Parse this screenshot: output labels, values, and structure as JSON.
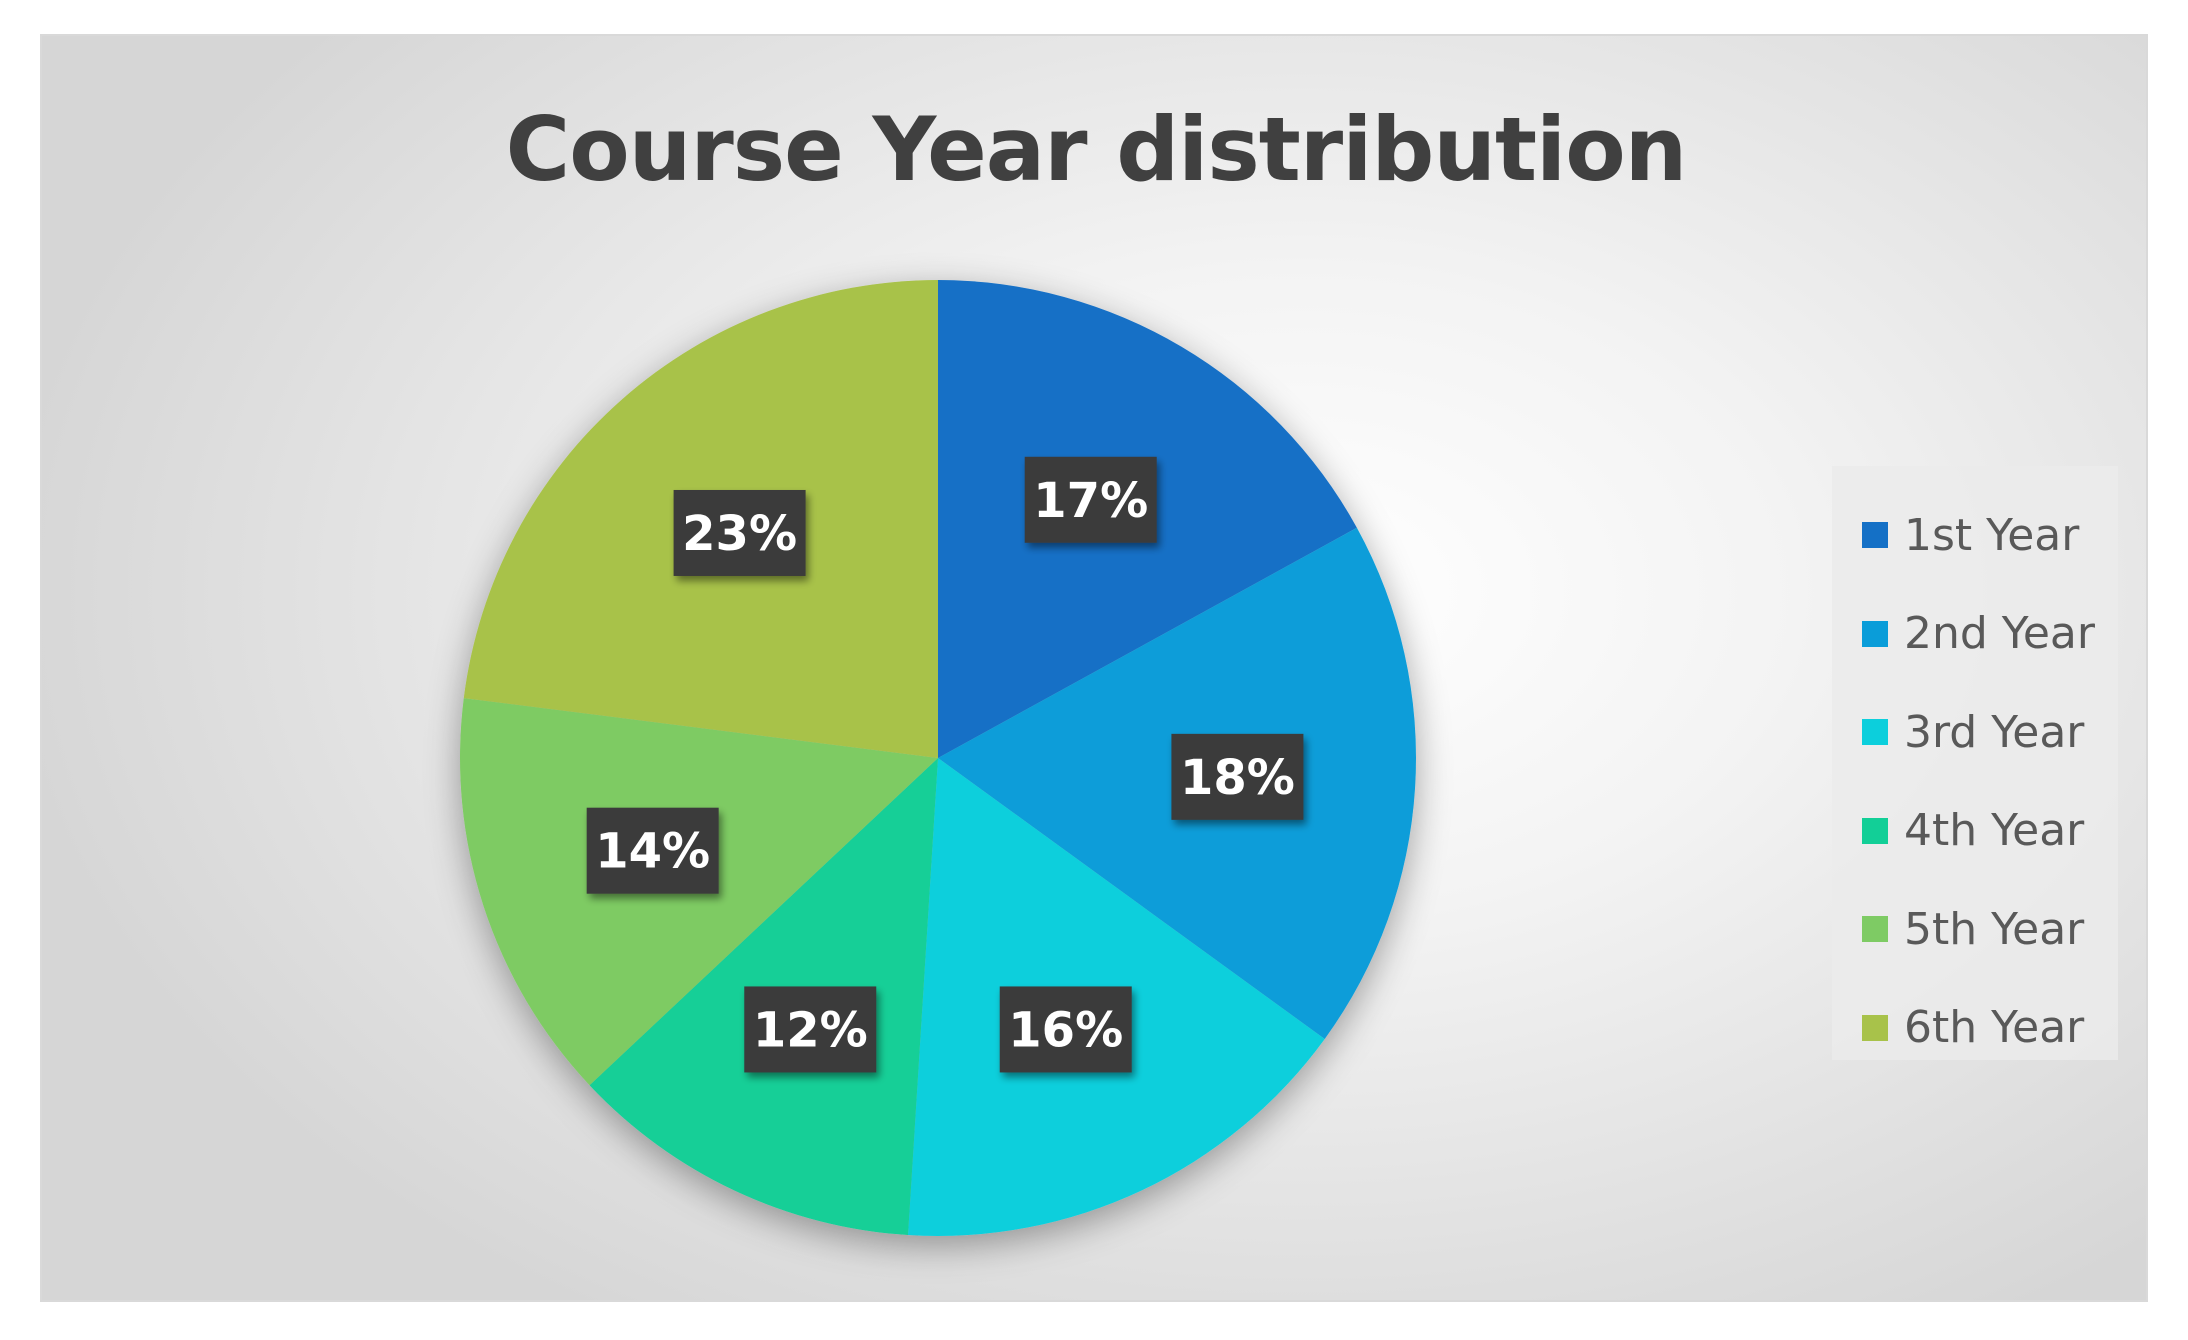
{
  "chart_data": {
    "type": "pie",
    "title": "Course Year distribution",
    "categories": [
      "1st Year",
      "2nd Year",
      "3rd Year",
      "4th Year",
      "5th Year",
      "6th Year"
    ],
    "values": [
      17,
      18,
      16,
      12,
      14,
      23
    ],
    "value_labels": [
      "17%",
      "18%",
      "16%",
      "12%",
      "14%",
      "23%"
    ],
    "colors": [
      "#1470c6",
      "#0a9dd9",
      "#0ccfdc",
      "#12cf97",
      "#7ecb64",
      "#a8c24a"
    ],
    "legend_placement": "right",
    "start_angle": "12 o'clock",
    "direction": "clockwise"
  }
}
